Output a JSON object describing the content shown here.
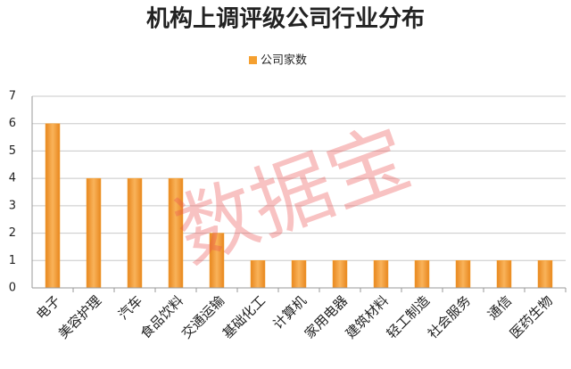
{
  "chart_data": {
    "type": "bar",
    "title": "机构上调评级公司行业分布",
    "categories": [
      "电子",
      "美容护理",
      "汽车",
      "食品饮料",
      "交通运输",
      "基础化工",
      "计算机",
      "家用电器",
      "建筑材料",
      "轻工制造",
      "社会服务",
      "通信",
      "医药生物"
    ],
    "series": [
      {
        "name": "公司家数",
        "color": "#f5a030",
        "values": [
          6,
          4,
          4,
          4,
          2,
          1,
          1,
          1,
          1,
          1,
          1,
          1,
          1
        ]
      }
    ],
    "ylim": [
      0,
      7
    ],
    "yticks": [
      0,
      1,
      2,
      3,
      4,
      5,
      6,
      7
    ],
    "grid": true,
    "legend": "top",
    "watermark": "数据宝"
  }
}
